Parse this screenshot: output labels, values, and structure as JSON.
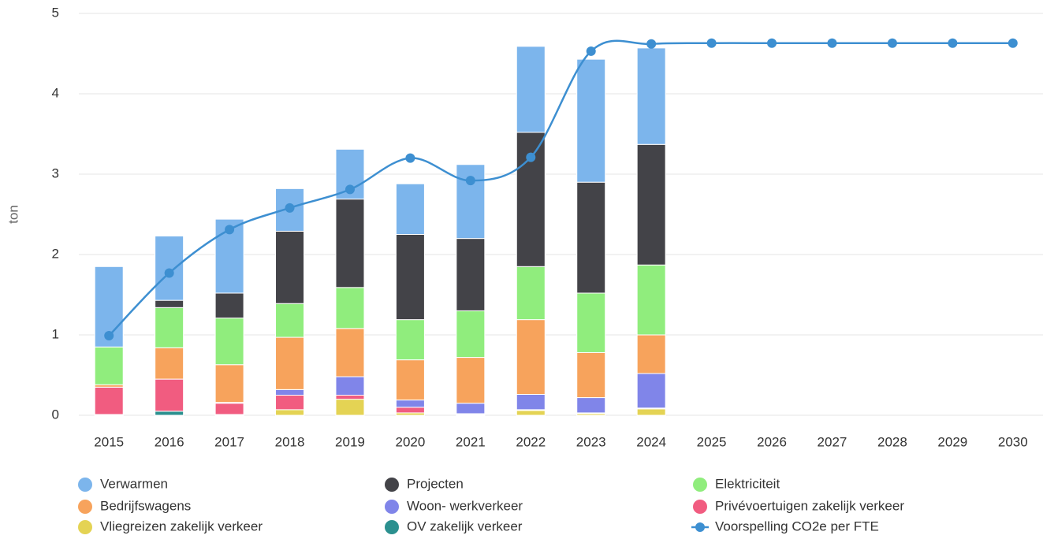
{
  "chart_data": {
    "type": "bar",
    "stacked": true,
    "y_label": "ton",
    "categories": [
      "2015",
      "2016",
      "2017",
      "2018",
      "2019",
      "2020",
      "2021",
      "2022",
      "2023",
      "2024",
      "2025",
      "2026",
      "2027",
      "2028",
      "2029",
      "2030"
    ],
    "ylim": [
      0,
      5
    ],
    "yticks": [
      0,
      1,
      2,
      3,
      4,
      5
    ],
    "grid": true,
    "series": [
      {
        "name": "Verwarmen",
        "color": "#7cb5ec",
        "values": [
          1.0,
          0.8,
          0.92,
          0.53,
          0.62,
          0.63,
          0.92,
          1.07,
          1.53,
          1.2,
          null,
          null,
          null,
          null,
          null,
          null
        ]
      },
      {
        "name": "Projecten",
        "color": "#434348",
        "values": [
          0,
          0.09,
          0.31,
          0.9,
          1.1,
          1.06,
          0.9,
          1.67,
          1.38,
          1.5,
          null,
          null,
          null,
          null,
          null,
          null
        ]
      },
      {
        "name": "Elektriciteit",
        "color": "#90ed7d",
        "values": [
          0.47,
          0.5,
          0.58,
          0.42,
          0.51,
          0.5,
          0.58,
          0.66,
          0.74,
          0.87,
          null,
          null,
          null,
          null,
          null,
          null
        ]
      },
      {
        "name": "Bedrijfswagens",
        "color": "#f7a35c",
        "values": [
          0.03,
          0.39,
          0.47,
          0.65,
          0.6,
          0.5,
          0.57,
          0.93,
          0.56,
          0.48,
          null,
          null,
          null,
          null,
          null,
          null
        ]
      },
      {
        "name": "Woon- werkverkeer",
        "color": "#8085e9",
        "values": [
          0,
          0,
          0.01,
          0.07,
          0.23,
          0.09,
          0.13,
          0.19,
          0.19,
          0.43,
          null,
          null,
          null,
          null,
          null,
          null
        ]
      },
      {
        "name": "Privévoertuigen zakelijk verkeer",
        "color": "#f15c80",
        "values": [
          0.34,
          0.4,
          0.14,
          0.18,
          0.05,
          0.07,
          0.01,
          0.01,
          0.01,
          0.01,
          null,
          null,
          null,
          null,
          null,
          null
        ]
      },
      {
        "name": "Vliegreizen zakelijk verkeer",
        "color": "#e4d354",
        "values": [
          0.01,
          0,
          0.01,
          0.07,
          0.2,
          0.03,
          0.01,
          0.06,
          0.02,
          0.08,
          null,
          null,
          null,
          null,
          null,
          null
        ]
      },
      {
        "name": "OV zakelijk verkeer",
        "color": "#2b908f",
        "values": [
          0,
          0.05,
          0,
          0,
          0,
          0,
          0,
          0,
          0,
          0,
          null,
          null,
          null,
          null,
          null,
          null
        ]
      },
      {
        "name": "Voorspelling CO2e per FTE",
        "color": "#3d8fd1",
        "type": "line",
        "values": [
          0.99,
          1.77,
          2.31,
          2.58,
          2.81,
          3.2,
          2.92,
          3.21,
          4.53,
          4.62,
          4.63,
          4.63,
          4.63,
          4.63,
          4.63,
          4.63
        ]
      }
    ]
  }
}
